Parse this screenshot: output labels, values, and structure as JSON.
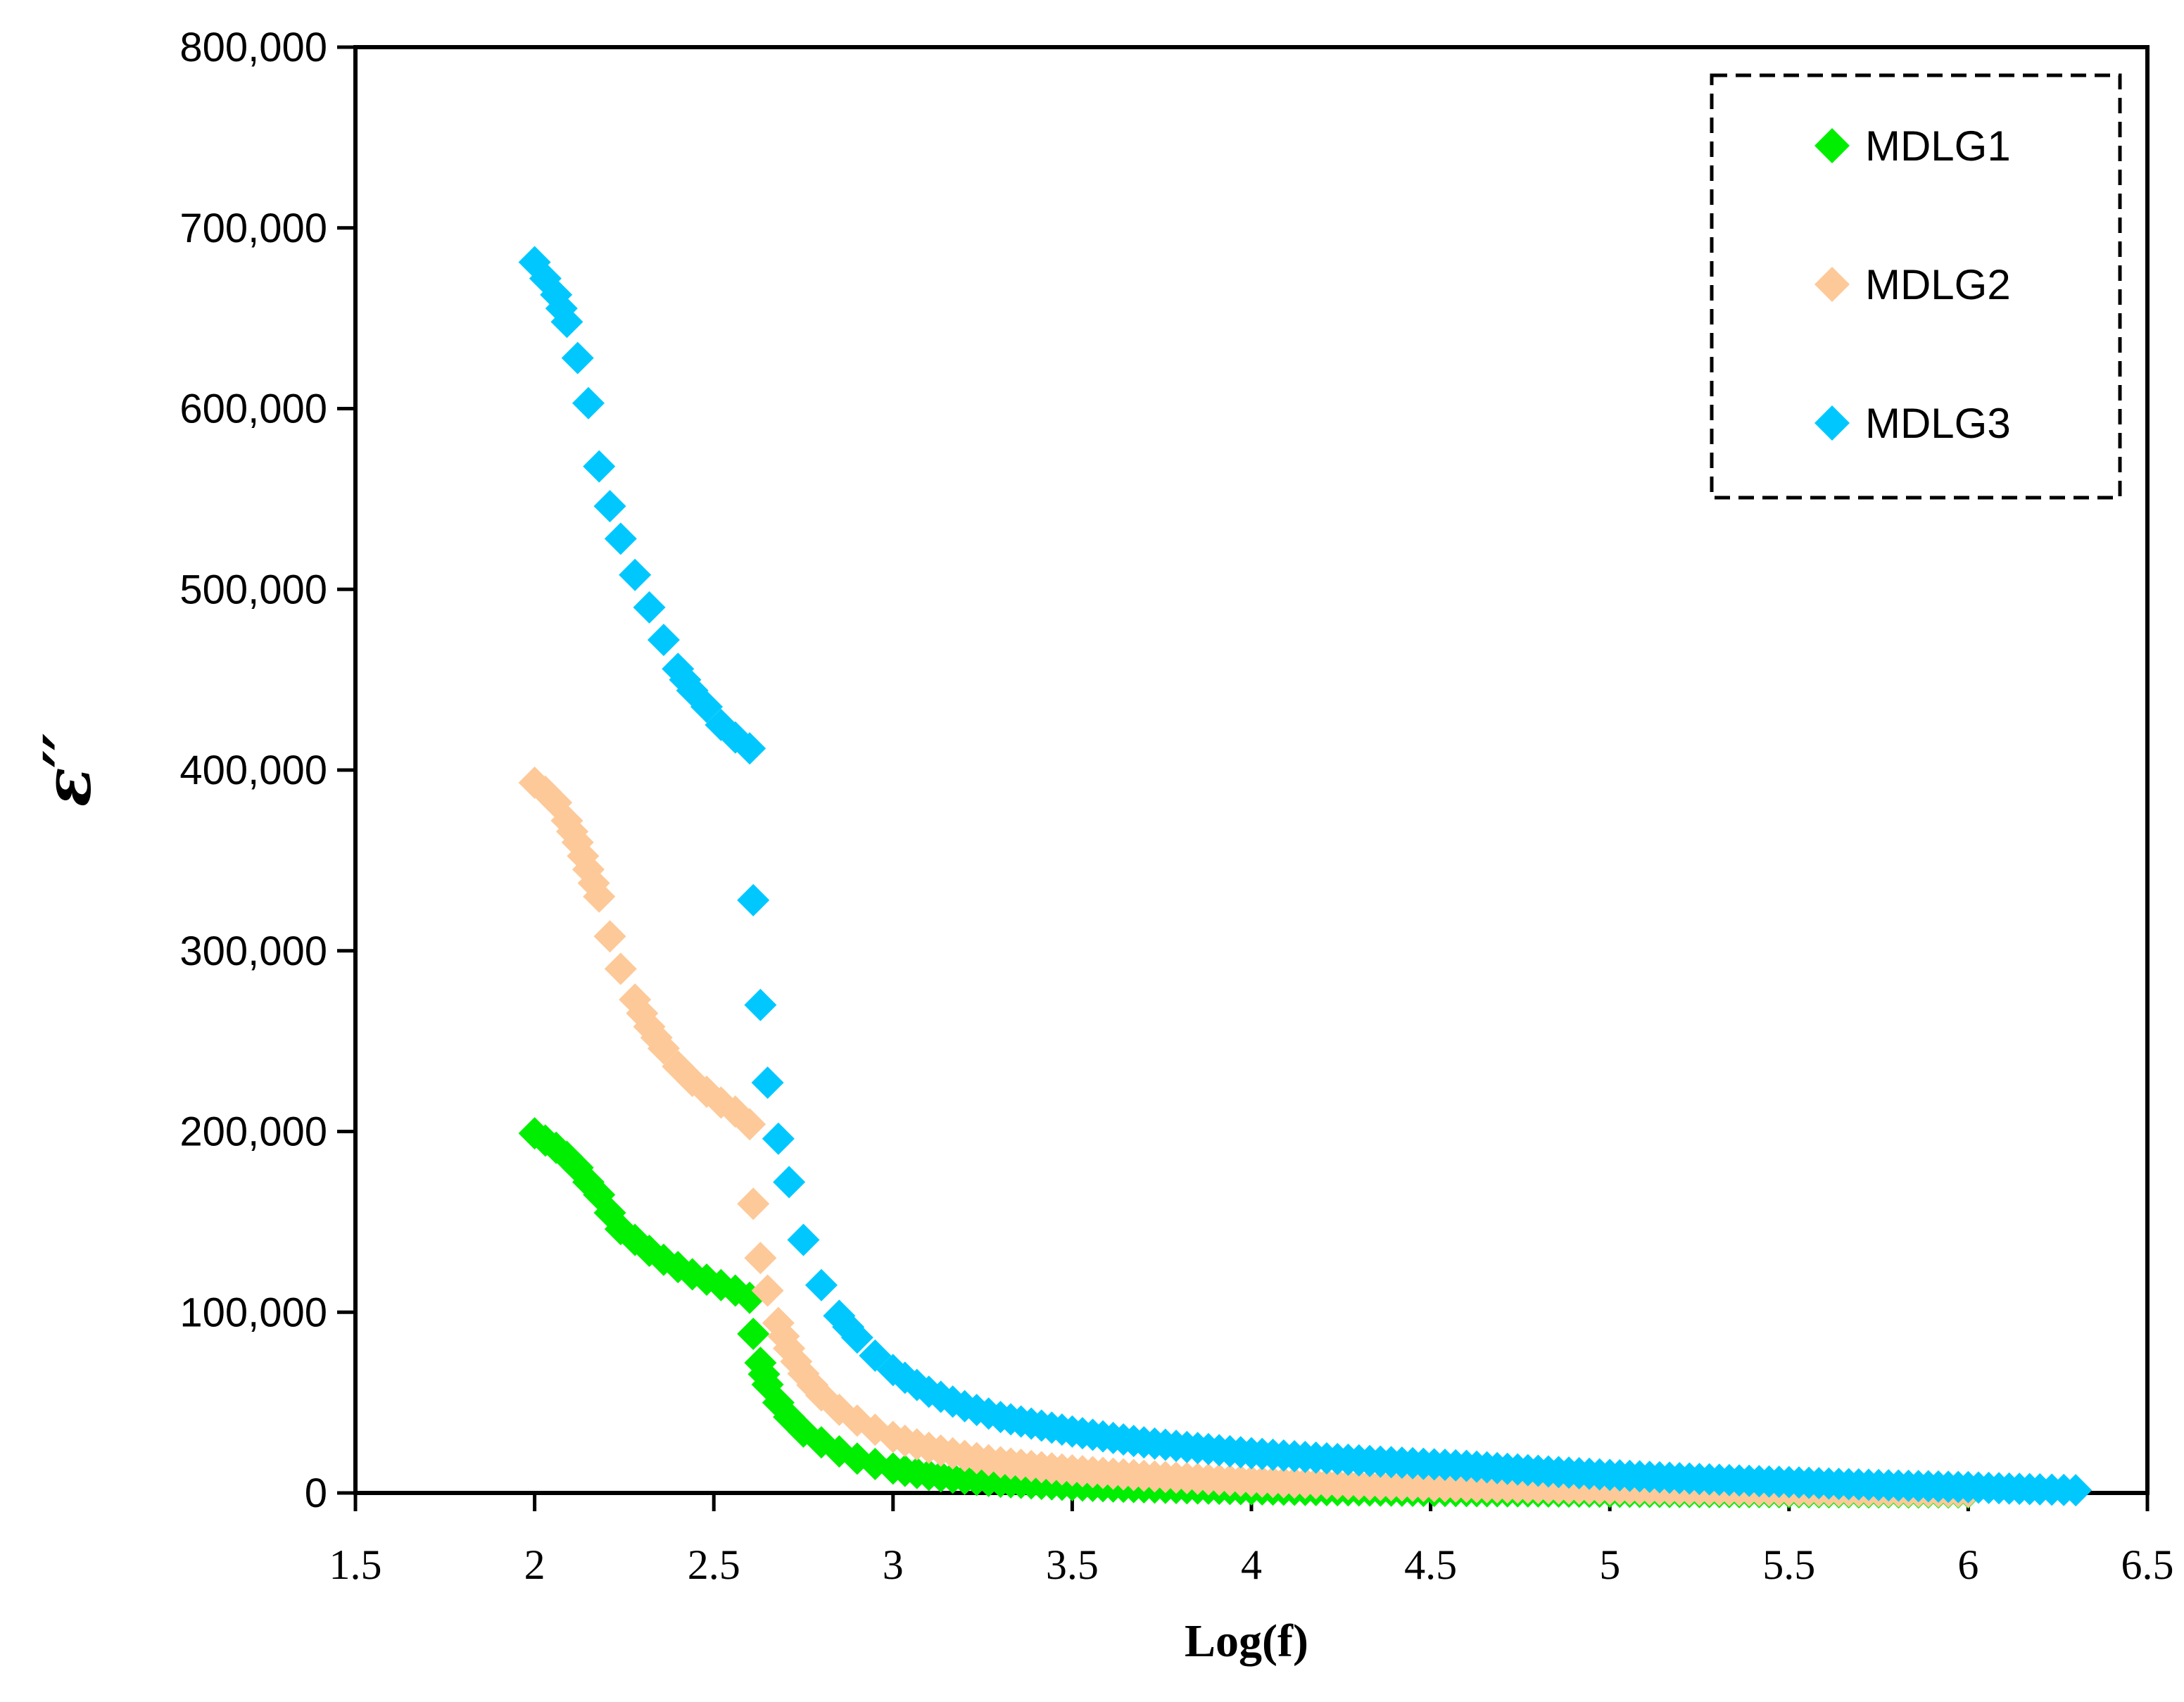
{
  "chart_data": {
    "type": "scatter",
    "title": "",
    "xlabel": "Log(f)",
    "ylabel": "ε′′",
    "xlim": [
      1.5,
      6.5
    ],
    "ylim": [
      0,
      800000
    ],
    "x_ticks": [
      1.5,
      2,
      2.5,
      3,
      3.5,
      4,
      4.5,
      5,
      5.5,
      6,
      6.5
    ],
    "x_tick_labels": [
      "1.5",
      "2",
      "2.5",
      "3",
      "3.5",
      "4",
      "4.5",
      "5",
      "5.5",
      "6",
      "6.5"
    ],
    "y_ticks": [
      0,
      100000,
      200000,
      300000,
      400000,
      500000,
      600000,
      700000,
      800000
    ],
    "y_tick_labels": [
      "0",
      "100,000",
      "200,000",
      "300,000",
      "400,000",
      "500,000",
      "600,000",
      "700,000",
      "800,000"
    ],
    "grid": false,
    "legend_position": "top-right",
    "marker": "diamond",
    "series": [
      {
        "name": "MDLG1",
        "color": "#00ee00",
        "x": [
          2.0,
          2.03,
          2.06,
          2.09,
          2.12,
          2.15,
          2.18,
          2.21,
          2.24,
          2.28,
          2.32,
          2.36,
          2.4,
          2.44,
          2.48,
          2.52,
          2.56,
          2.6,
          2.61,
          2.63,
          2.65,
          2.68,
          2.71,
          2.75,
          2.8,
          2.85,
          2.9,
          2.95,
          3.0,
          3.1,
          3.2,
          3.3,
          3.5,
          3.7,
          4.0,
          4.3,
          4.6,
          5.0,
          5.5,
          6.0
        ],
        "y": [
          199000,
          195000,
          191000,
          186000,
          180000,
          172000,
          165000,
          155000,
          146000,
          140000,
          134000,
          129000,
          125000,
          121000,
          118000,
          115000,
          112000,
          108000,
          88000,
          72000,
          60000,
          50000,
          42000,
          34000,
          28000,
          23000,
          19000,
          16000,
          13500,
          10000,
          7800,
          6200,
          4300,
          3100,
          2000,
          1400,
          1000,
          650,
          380,
          220
        ]
      },
      {
        "name": "MDLG2",
        "color": "#fdc998",
        "x": [
          2.0,
          2.03,
          2.06,
          2.09,
          2.12,
          2.15,
          2.18,
          2.21,
          2.24,
          2.28,
          2.32,
          2.36,
          2.4,
          2.44,
          2.48,
          2.52,
          2.56,
          2.6,
          2.61,
          2.63,
          2.65,
          2.68,
          2.71,
          2.75,
          2.8,
          2.85,
          2.9,
          2.95,
          3.0,
          3.1,
          3.2,
          3.3,
          3.5,
          3.7,
          4.0,
          4.3,
          4.6,
          5.0,
          5.5,
          6.0
        ],
        "y": [
          393000,
          388000,
          382000,
          372000,
          360000,
          345000,
          330000,
          308000,
          290000,
          273000,
          258000,
          246000,
          236000,
          228000,
          222000,
          216000,
          211000,
          204000,
          160000,
          130000,
          112000,
          94000,
          80000,
          66000,
          54000,
          46000,
          40000,
          35000,
          31000,
          25000,
          20500,
          17000,
          12500,
          9500,
          6500,
          4700,
          3400,
          2100,
          1200,
          650
        ]
      },
      {
        "name": "MDLG3",
        "color": "#00c8ff",
        "x": [
          2.0,
          2.03,
          2.06,
          2.09,
          2.12,
          2.15,
          2.18,
          2.21,
          2.24,
          2.28,
          2.32,
          2.36,
          2.4,
          2.44,
          2.48,
          2.52,
          2.56,
          2.6,
          2.61,
          2.63,
          2.65,
          2.68,
          2.71,
          2.75,
          2.8,
          2.85,
          2.9,
          2.95,
          3.0,
          3.1,
          3.2,
          3.3,
          3.5,
          3.7,
          4.0,
          4.3,
          4.6,
          5.0,
          5.5,
          6.0,
          6.2,
          6.3
        ],
        "y": [
          681000,
          672000,
          663000,
          648000,
          628000,
          603000,
          568000,
          546000,
          528000,
          508000,
          490000,
          472000,
          456000,
          444000,
          435000,
          425000,
          418000,
          412000,
          328000,
          270000,
          227000,
          196000,
          172000,
          140000,
          115000,
          98000,
          86000,
          76000,
          68000,
          56000,
          48000,
          42000,
          34000,
          28000,
          22000,
          18000,
          15000,
          10000,
          6000,
          3200,
          2000,
          1500
        ]
      }
    ]
  }
}
